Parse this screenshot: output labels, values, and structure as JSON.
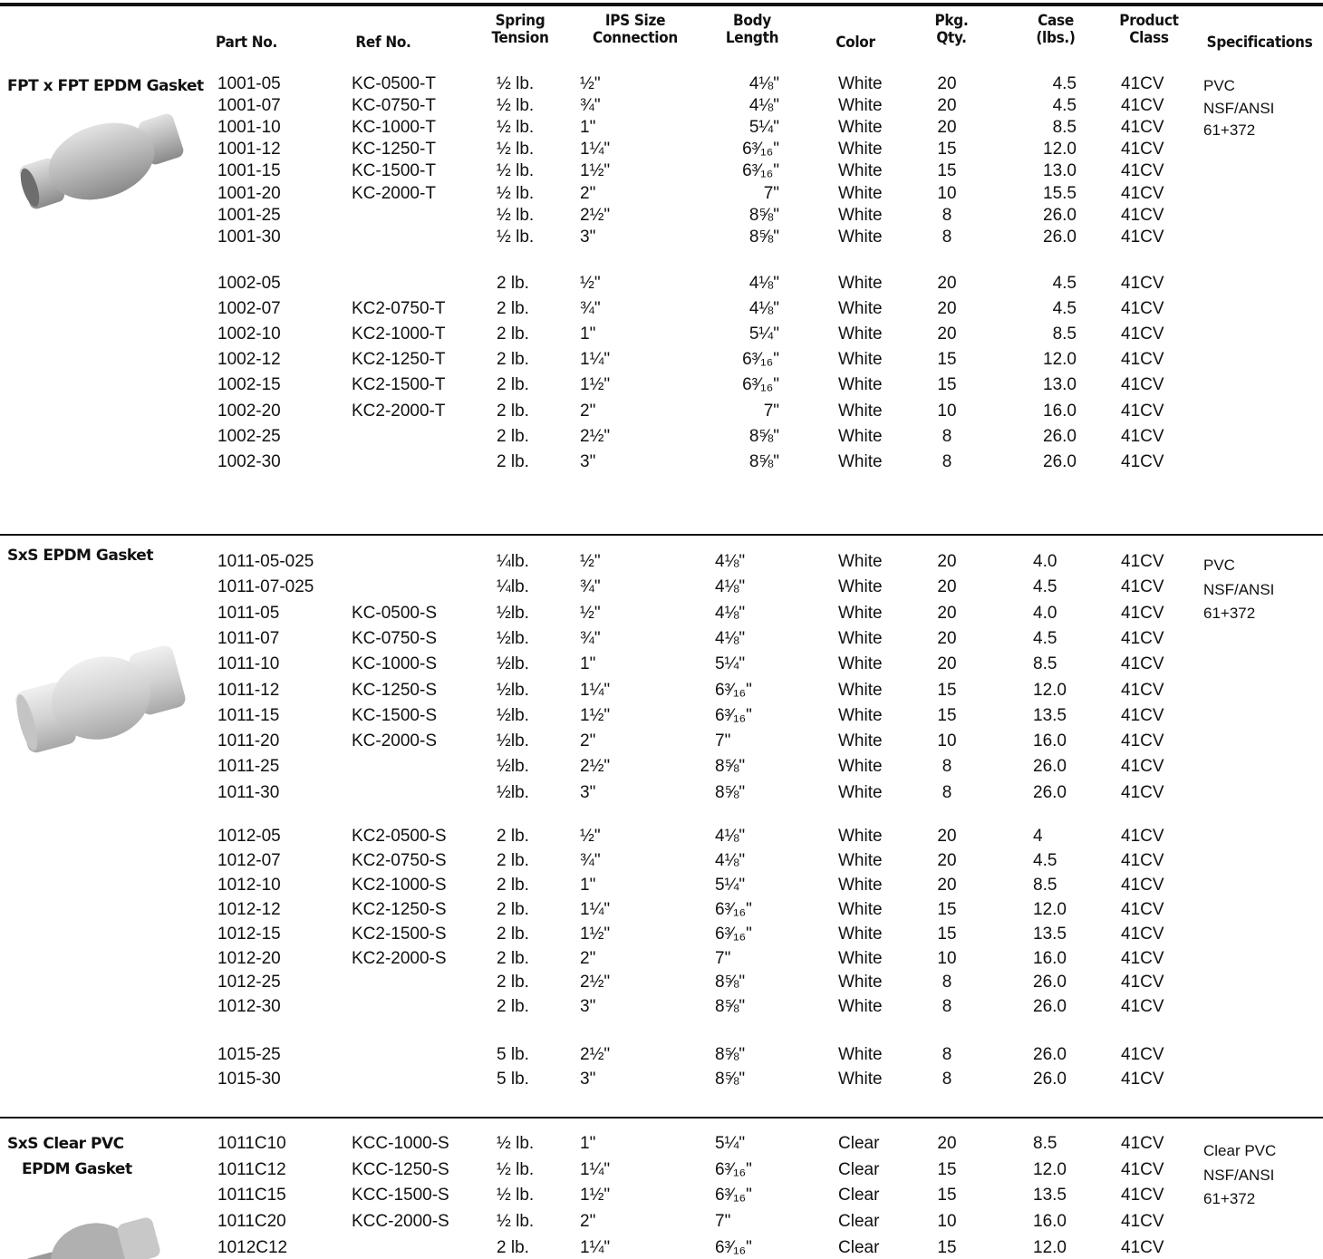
{
  "header": {
    "columns": [
      [
        "Part No."
      ],
      [
        "Ref No."
      ],
      [
        "Spring",
        "Tension"
      ],
      [
        "IPS Size",
        "Connection"
      ],
      [
        "Body",
        "Length"
      ],
      [
        "Color"
      ],
      [
        "Pkg.",
        "Qty."
      ],
      [
        "Case",
        "(lbs.)"
      ],
      [
        "Product",
        "Class"
      ],
      [
        "Specifications"
      ]
    ]
  },
  "sections": [
    {
      "label": [
        "FPT x FPT EPDM Gasket"
      ],
      "specifications": [
        "PVC",
        "NSF/ANSI",
        "61+372"
      ],
      "groups": [
        [
          [
            "1001-05",
            "KC-0500-T",
            "½ lb.",
            "½\"",
            "4⅛\"",
            "White",
            "20",
            "4.5",
            "41CV"
          ],
          [
            "1001-07",
            "KC-0750-T",
            "½ lb.",
            "¾\"",
            "4⅛\"",
            "White",
            "20",
            "4.5",
            "41CV"
          ],
          [
            "1001-10",
            "KC-1000-T",
            "½ lb.",
            "1\"",
            "5¼\"",
            "White",
            "20",
            "8.5",
            "41CV"
          ],
          [
            "1001-12",
            "KC-1250-T",
            "½ lb.",
            "1¼\"",
            "6³⁄₁₆\"",
            "White",
            "15",
            "12.0",
            "41CV"
          ],
          [
            "1001-15",
            "KC-1500-T",
            "½ lb.",
            "1½\"",
            "6³⁄₁₆\"",
            "White",
            "15",
            "13.0",
            "41CV"
          ],
          [
            "1001-20",
            "KC-2000-T",
            "½ lb.",
            "2\"",
            "7\"",
            "White",
            "10",
            "15.5",
            "41CV"
          ],
          [
            "1001-25",
            null,
            "½ lb.",
            "2½\"",
            "8⅝\"",
            "White",
            "8",
            "26.0",
            "41CV"
          ],
          [
            "1001-30",
            null,
            "½ lb.",
            "3\"",
            "8⅝\"",
            "White",
            "8",
            "26.0",
            "41CV"
          ]
        ],
        [
          [
            "1002-05",
            null,
            "2 lb.",
            "½\"",
            "4⅛\"",
            "White",
            "20",
            "4.5",
            "41CV"
          ],
          [
            "1002-07",
            "KC2-0750-T",
            "2 lb.",
            "¾\"",
            "4⅛\"",
            "White",
            "20",
            "4.5",
            "41CV"
          ],
          [
            "1002-10",
            "KC2-1000-T",
            "2 lb.",
            "1\"",
            "5¼\"",
            "White",
            "20",
            "8.5",
            "41CV"
          ],
          [
            "1002-12",
            "KC2-1250-T",
            "2 lb.",
            "1¼\"",
            "6³⁄₁₆\"",
            "White",
            "15",
            "12.0",
            "41CV"
          ],
          [
            "1002-15",
            "KC2-1500-T",
            "2 lb.",
            "1½\"",
            "6³⁄₁₆\"",
            "White",
            "15",
            "13.0",
            "41CV"
          ],
          [
            "1002-20",
            "KC2-2000-T",
            "2 lb.",
            "2\"",
            "7\"",
            "White",
            "10",
            "16.0",
            "41CV"
          ],
          [
            "1002-25",
            null,
            "2 lb.",
            "2½\"",
            "8⅝\"",
            "White",
            "8",
            "26.0",
            "41CV"
          ],
          [
            "1002-30",
            null,
            "2 lb.",
            "3\"",
            "8⅝\"",
            "White",
            "8",
            "26.0",
            "41CV"
          ]
        ]
      ]
    },
    {
      "label": [
        "SxS EPDM Gasket"
      ],
      "specifications": [
        "PVC",
        "NSF/ANSI",
        "61+372"
      ],
      "groups": [
        [
          [
            "1011-05-025",
            null,
            "¼lb.",
            "½\"",
            "4⅛\"",
            "White",
            "20",
            "4.0",
            "41CV"
          ],
          [
            "1011-07-025",
            null,
            "¼lb.",
            "¾\"",
            "4⅛\"",
            "White",
            "20",
            "4.5",
            "41CV"
          ],
          [
            "1011-05",
            "KC-0500-S",
            "½lb.",
            "½\"",
            "4⅛\"",
            "White",
            "20",
            "4.0",
            "41CV"
          ],
          [
            "1011-07",
            "KC-0750-S",
            "½lb.",
            "¾\"",
            "4⅛\"",
            "White",
            "20",
            "4.5",
            "41CV"
          ],
          [
            "1011-10",
            "KC-1000-S",
            "½lb.",
            "1\"",
            "5¼\"",
            "White",
            "20",
            "8.5",
            "41CV"
          ],
          [
            "1011-12",
            "KC-1250-S",
            "½lb.",
            "1¼\"",
            "6³⁄₁₆\"",
            "White",
            "15",
            "12.0",
            "41CV"
          ],
          [
            "1011-15",
            "KC-1500-S",
            "½lb.",
            "1½\"",
            "6³⁄₁₆\"",
            "White",
            "15",
            "13.5",
            "41CV"
          ],
          [
            "1011-20",
            "KC-2000-S",
            "½lb.",
            "2\"",
            "7\"",
            "White",
            "10",
            "16.0",
            "41CV"
          ],
          [
            "1011-25",
            null,
            "½lb.",
            "2½\"",
            "8⅝\"",
            "White",
            "8",
            "26.0",
            "41CV"
          ],
          [
            "1011-30",
            null,
            "½lb.",
            "3\"",
            "8⅝\"",
            "White",
            "8",
            "26.0",
            "41CV"
          ]
        ],
        [
          [
            "1012-05",
            "KC2-0500-S",
            "2 lb.",
            "½\"",
            "4⅛\"",
            "White",
            "20",
            "4",
            "41CV"
          ],
          [
            "1012-07",
            "KC2-0750-S",
            "2 lb.",
            "¾\"",
            "4⅛\"",
            "White",
            "20",
            "4.5",
            "41CV"
          ],
          [
            "1012-10",
            "KC2-1000-S",
            "2 lb.",
            "1\"",
            "5¼\"",
            "White",
            "20",
            "8.5",
            "41CV"
          ],
          [
            "1012-12",
            "KC2-1250-S",
            "2 lb.",
            "1¼\"",
            "6³⁄₁₆\"",
            "White",
            "15",
            "12.0",
            "41CV"
          ],
          [
            "1012-15",
            "KC2-1500-S",
            "2 lb.",
            "1½\"",
            "6³⁄₁₆\"",
            "White",
            "15",
            "13.5",
            "41CV"
          ],
          [
            "1012-20",
            "KC2-2000-S",
            "2 lb.",
            "2\"",
            "7\"",
            "White",
            "10",
            "16.0",
            "41CV"
          ],
          [
            "1012-25",
            null,
            "2 lb.",
            "2½\"",
            "8⅝\"",
            "White",
            "8",
            "26.0",
            "41CV"
          ],
          [
            "1012-30",
            null,
            "2 lb.",
            "3\"",
            "8⅝\"",
            "White",
            "8",
            "26.0",
            "41CV"
          ]
        ],
        [
          [
            "1015-25",
            null,
            "5 lb.",
            "2½\"",
            "8⅝\"",
            "White",
            "8",
            "26.0",
            "41CV"
          ],
          [
            "1015-30",
            null,
            "5 lb.",
            "3\"",
            "8⅝\"",
            "White",
            "8",
            "26.0",
            "41CV"
          ]
        ]
      ]
    },
    {
      "label": [
        "SxS Clear PVC",
        "EPDM Gasket"
      ],
      "specifications": [
        "Clear PVC",
        "NSF/ANSI",
        "61+372"
      ],
      "groups": [
        [
          [
            "1011C10",
            "KCC-1000-S",
            "½ lb.",
            "1\"",
            "5¼\"",
            "Clear",
            "20",
            "8.5",
            "41CV"
          ],
          [
            "1011C12",
            "KCC-1250-S",
            "½ lb.",
            "1¼\"",
            "6³⁄₁₆\"",
            "Clear",
            "15",
            "12.0",
            "41CV"
          ],
          [
            "1011C15",
            "KCC-1500-S",
            "½ lb.",
            "1½\"",
            "6³⁄₁₆\"",
            "Clear",
            "15",
            "13.5",
            "41CV"
          ],
          [
            "1011C20",
            "KCC-2000-S",
            "½ lb.",
            "2\"",
            "7\"",
            "Clear",
            "10",
            "16.0",
            "41CV"
          ],
          [
            "1012C12",
            null,
            "2 lb.",
            "1¼\"",
            "6³⁄₁₆\"",
            "Clear",
            "15",
            "12.0",
            "41CV"
          ]
        ]
      ]
    }
  ]
}
